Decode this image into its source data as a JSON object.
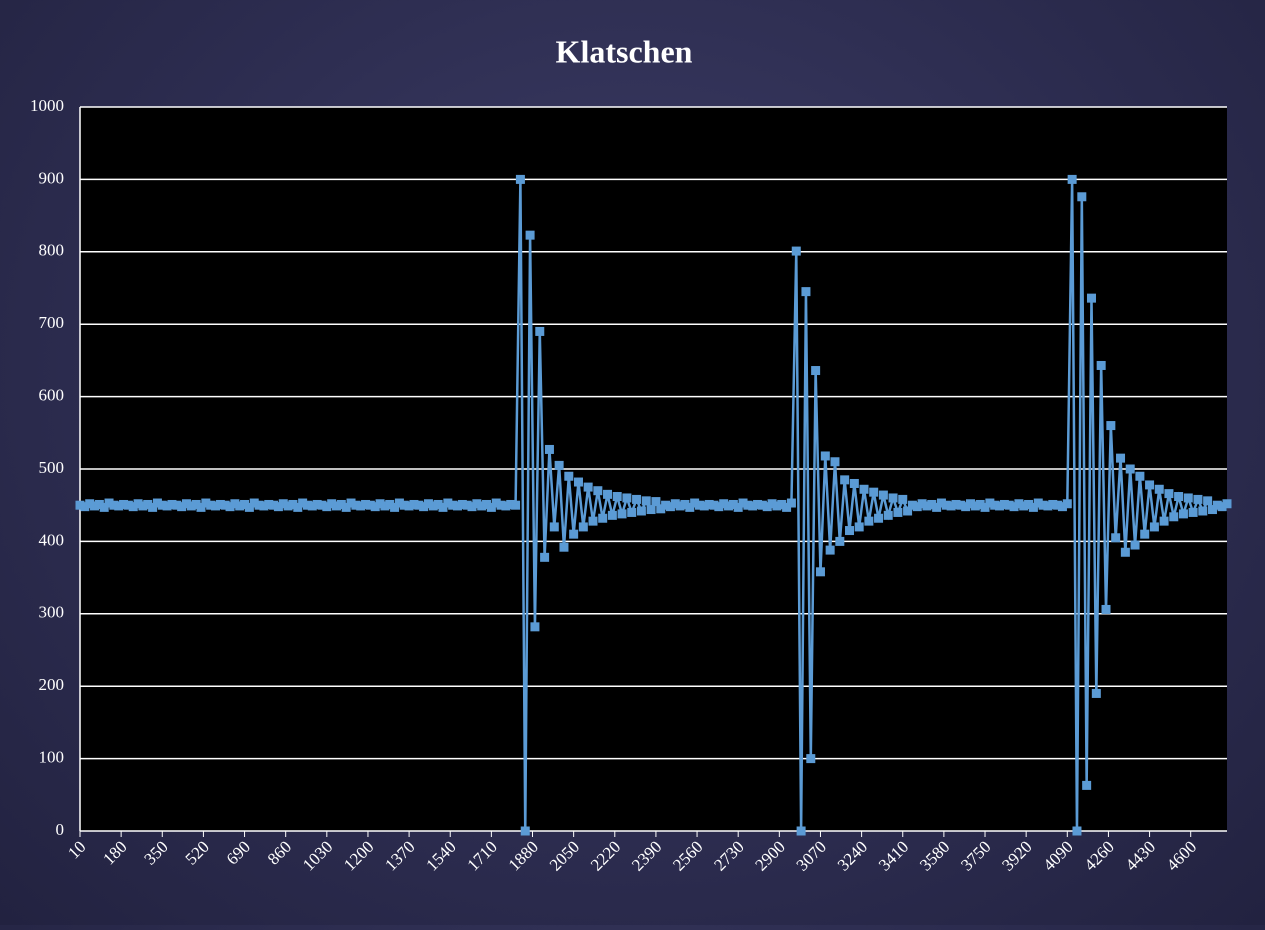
{
  "chart_data": {
    "type": "line",
    "title": "Klatschen",
    "color": "#5b9bd5",
    "grid": true,
    "x": [
      10,
      30,
      50,
      70,
      90,
      110,
      130,
      150,
      170,
      190,
      210,
      230,
      250,
      270,
      290,
      310,
      330,
      350,
      370,
      390,
      410,
      430,
      450,
      470,
      490,
      510,
      530,
      550,
      570,
      590,
      610,
      630,
      650,
      670,
      690,
      710,
      730,
      750,
      770,
      790,
      810,
      830,
      850,
      870,
      890,
      910,
      930,
      950,
      970,
      990,
      1010,
      1030,
      1050,
      1070,
      1090,
      1110,
      1130,
      1150,
      1170,
      1190,
      1210,
      1230,
      1250,
      1270,
      1290,
      1310,
      1330,
      1350,
      1370,
      1390,
      1410,
      1430,
      1450,
      1470,
      1490,
      1510,
      1530,
      1550,
      1570,
      1590,
      1610,
      1630,
      1650,
      1670,
      1690,
      1710,
      1730,
      1750,
      1770,
      1790,
      1810,
      1830,
      1850,
      1870,
      1890,
      1910,
      1930,
      1950,
      1970,
      1990,
      2010,
      2030,
      2050,
      2070,
      2090,
      2110,
      2130,
      2150,
      2170,
      2190,
      2210,
      2230,
      2250,
      2270,
      2290,
      2310,
      2330,
      2350,
      2370,
      2390,
      2410,
      2430,
      2450,
      2470,
      2490,
      2510,
      2530,
      2550,
      2570,
      2590,
      2610,
      2630,
      2650,
      2670,
      2690,
      2710,
      2730,
      2750,
      2770,
      2790,
      2810,
      2830,
      2850,
      2870,
      2890,
      2910,
      2930,
      2950,
      2970,
      2990,
      3010,
      3030,
      3050,
      3070,
      3090,
      3110,
      3130,
      3150,
      3170,
      3190,
      3210,
      3230,
      3250,
      3270,
      3290,
      3310,
      3330,
      3350,
      3370,
      3390,
      3410,
      3430,
      3450,
      3470,
      3490,
      3510,
      3530,
      3550,
      3570,
      3590,
      3610,
      3630,
      3650,
      3670,
      3690,
      3710,
      3730,
      3750,
      3770,
      3790,
      3810,
      3830,
      3850,
      3870,
      3890,
      3910,
      3930,
      3950,
      3970,
      3990,
      4010,
      4030,
      4050,
      4070,
      4090,
      4110,
      4130,
      4150,
      4170,
      4190,
      4210,
      4230,
      4250,
      4270,
      4290,
      4310,
      4330,
      4350,
      4370,
      4390,
      4410,
      4430,
      4450,
      4470,
      4490,
      4510,
      4530,
      4550,
      4570,
      4590,
      4610,
      4630,
      4650,
      4670,
      4690,
      4710,
      4730,
      4750
    ],
    "values": [
      450,
      448,
      452,
      449,
      451,
      447,
      453,
      450,
      449,
      451,
      450,
      448,
      452,
      449,
      451,
      447,
      453,
      450,
      449,
      451,
      450,
      448,
      452,
      449,
      451,
      447,
      453,
      450,
      449,
      451,
      450,
      448,
      452,
      449,
      451,
      447,
      453,
      450,
      449,
      451,
      450,
      448,
      452,
      449,
      451,
      447,
      453,
      450,
      449,
      451,
      450,
      448,
      452,
      449,
      451,
      447,
      453,
      450,
      449,
      451,
      450,
      448,
      452,
      449,
      451,
      447,
      453,
      450,
      449,
      451,
      450,
      448,
      452,
      449,
      451,
      447,
      453,
      450,
      449,
      451,
      450,
      448,
      452,
      449,
      451,
      447,
      453,
      450,
      449,
      451,
      450,
      900,
      0,
      823,
      282,
      690,
      378,
      527,
      420,
      505,
      392,
      490,
      410,
      482,
      420,
      475,
      428,
      470,
      432,
      465,
      436,
      462,
      438,
      460,
      440,
      458,
      442,
      456,
      444,
      455,
      445,
      450,
      448,
      452,
      449,
      451,
      447,
      453,
      450,
      449,
      451,
      450,
      448,
      452,
      449,
      451,
      447,
      453,
      450,
      449,
      451,
      450,
      448,
      452,
      449,
      451,
      447,
      453,
      801,
      0,
      745,
      100,
      636,
      358,
      518,
      388,
      510,
      400,
      485,
      415,
      480,
      420,
      472,
      428,
      468,
      432,
      464,
      436,
      460,
      440,
      458,
      442,
      450,
      448,
      452,
      449,
      451,
      447,
      453,
      450,
      449,
      451,
      450,
      448,
      452,
      449,
      451,
      447,
      453,
      450,
      449,
      451,
      450,
      448,
      452,
      449,
      451,
      447,
      453,
      450,
      449,
      451,
      450,
      448,
      452,
      900,
      0,
      876,
      63,
      736,
      190,
      643,
      306,
      560,
      405,
      515,
      385,
      500,
      395,
      490,
      410,
      478,
      420,
      472,
      428,
      466,
      434,
      462,
      438,
      460,
      440,
      458,
      442,
      456,
      444,
      450,
      448,
      452
    ],
    "xlim": [
      10,
      4750
    ],
    "xticks": [
      10,
      180,
      350,
      520,
      690,
      860,
      1030,
      1200,
      1370,
      1540,
      1710,
      1880,
      2050,
      2220,
      2390,
      2560,
      2730,
      2900,
      3070,
      3240,
      3410,
      3580,
      3750,
      3920,
      4090,
      4260,
      4430,
      4600
    ],
    "ylim": [
      0,
      1000
    ],
    "yticks": [
      0,
      100,
      200,
      300,
      400,
      500,
      600,
      700,
      800,
      900,
      1000
    ]
  }
}
